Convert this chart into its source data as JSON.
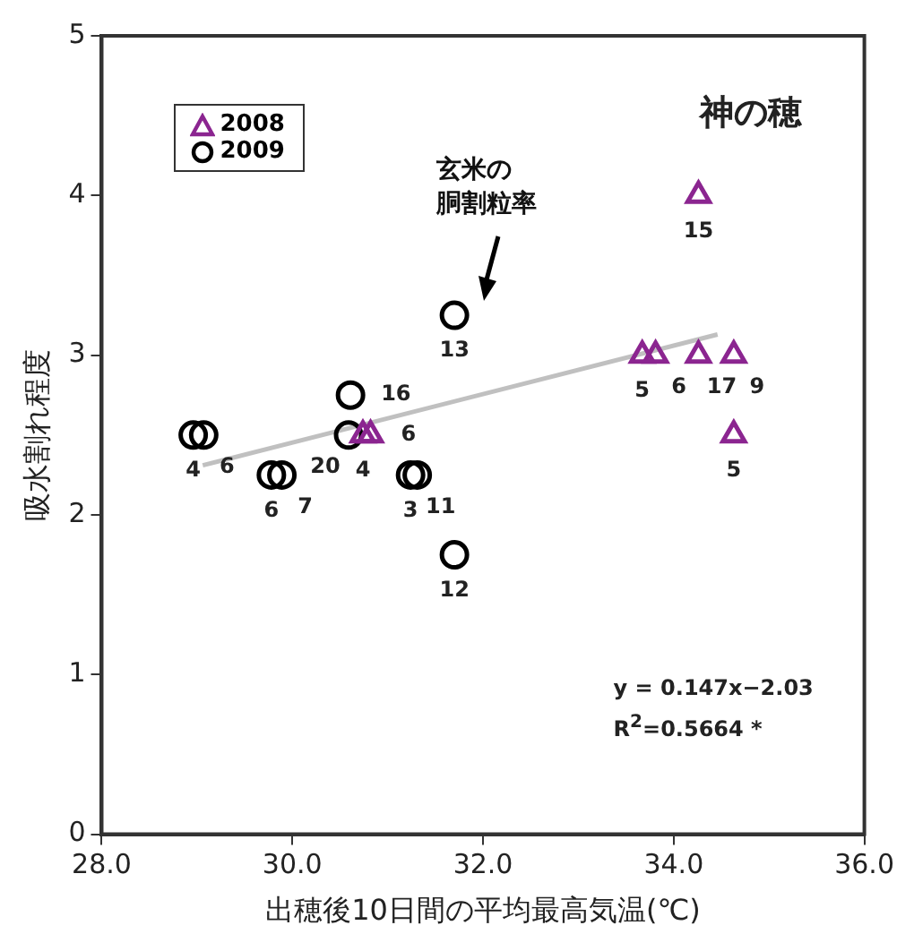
{
  "chart_data": {
    "type": "scatter",
    "title": "神の穂",
    "xlabel": "出穂後10日間の平均最高気温(℃)",
    "ylabel": "吸水割れ程度",
    "xlim": [
      28,
      36
    ],
    "xticks": [
      {
        "value": 28,
        "label": "28.0"
      },
      {
        "value": 30,
        "label": "30.0"
      },
      {
        "value": 32,
        "label": "32.0"
      },
      {
        "value": 34,
        "label": "34.0"
      },
      {
        "value": 36,
        "label": "36.0"
      }
    ],
    "ylim": [
      0,
      5
    ],
    "yticks": [
      0,
      1,
      2,
      3,
      4,
      5
    ],
    "grid": false,
    "legend": "top left",
    "series": [
      {
        "name": "2008",
        "color": "#8b2590",
        "marker": "triangle",
        "x": [
          30.74,
          30.82,
          33.67,
          33.81,
          34.26,
          34.26,
          34.63,
          34.63
        ],
        "values": [
          2.5,
          2.5,
          3,
          3,
          3,
          4,
          3,
          2.5
        ]
      },
      {
        "name": "2009",
        "color": "#000000",
        "marker": "circle",
        "x": [
          28.96,
          29.07,
          29.78,
          29.89,
          30.59,
          30.61,
          31.24,
          31.31,
          31.7,
          31.7
        ],
        "values": [
          2.5,
          2.5,
          2.25,
          2.25,
          2.5,
          2.75,
          2.25,
          2.25,
          3.25,
          1.75
        ]
      },
      {
        "type": "line",
        "color": "#c0c0c0",
        "x": [
          29.06,
          34.46
        ],
        "values": [
          2.31,
          3.13
        ]
      }
    ],
    "annotations": [
      "玄米の胴割粒率",
      {
        "text": "4",
        "x": 30.74,
        "y": 2.5
      },
      {
        "text": "6",
        "x": 30.82,
        "y": 2.5
      },
      {
        "text": "5",
        "x": 33.67,
        "y": 3
      },
      {
        "text": "6",
        "x": 33.81,
        "y": 3
      },
      {
        "text": "17",
        "x": 34.26,
        "y": 3
      },
      {
        "text": "15",
        "x": 34.26,
        "y": 4
      },
      {
        "text": "9",
        "x": 34.63,
        "y": 3
      },
      {
        "text": "5",
        "x": 34.63,
        "y": 2.5
      },
      {
        "text": "4",
        "x": 28.96,
        "y": 2.5
      },
      {
        "text": "6",
        "x": 29.07,
        "y": 2.5
      },
      {
        "text": "6",
        "x": 29.78,
        "y": 2.25
      },
      {
        "text": "7",
        "x": 29.89,
        "y": 2.25
      },
      {
        "text": "20",
        "x": 30.59,
        "y": 2.5
      },
      {
        "text": "16",
        "x": 30.61,
        "y": 2.75
      },
      {
        "text": "3",
        "x": 31.24,
        "y": 2.25
      },
      {
        "text": "11",
        "x": 31.31,
        "y": 2.25
      },
      {
        "text": "13",
        "x": 31.7,
        "y": 3.25
      },
      {
        "text": "12",
        "x": 31.7,
        "y": 1.75
      },
      "y = 0.147x−2.03",
      "R$^{2}$=0.5664 *"
    ]
  }
}
